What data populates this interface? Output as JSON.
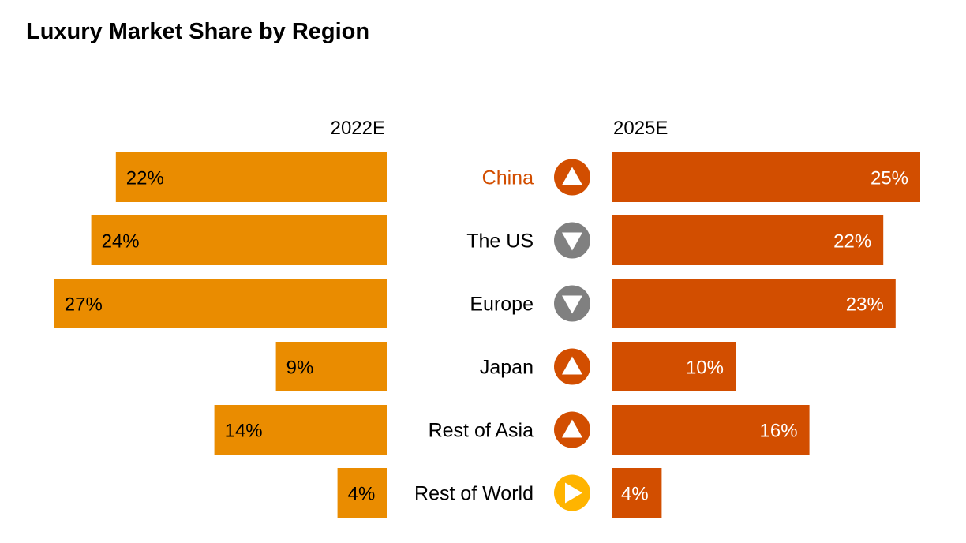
{
  "chart_data": {
    "type": "bar",
    "title": "Luxury Market Share by Region",
    "left_label": "2022E",
    "right_label": "2025E",
    "unit": "%",
    "categories": [
      "China",
      "The US",
      "Europe",
      "Japan",
      "Rest of Asia",
      "Rest of World"
    ],
    "series": [
      {
        "name": "2022E",
        "values": [
          22,
          24,
          27,
          9,
          14,
          4
        ]
      },
      {
        "name": "2025E",
        "values": [
          25,
          22,
          23,
          10,
          16,
          4
        ]
      }
    ],
    "trend": [
      "up",
      "down",
      "down",
      "up",
      "up",
      "flat"
    ],
    "trend_icons": [
      "triangle-up-icon",
      "triangle-down-icon",
      "triangle-down-icon",
      "triangle-up-icon",
      "triangle-up-icon",
      "triangle-right-icon"
    ],
    "highlight_category": "China",
    "colors": {
      "left_bar": "#EA8C00",
      "right_bar": "#D24E00",
      "up": "#D24E00",
      "down": "#808080",
      "flat": "#FFB400",
      "highlight_text": "#D24E00"
    }
  }
}
